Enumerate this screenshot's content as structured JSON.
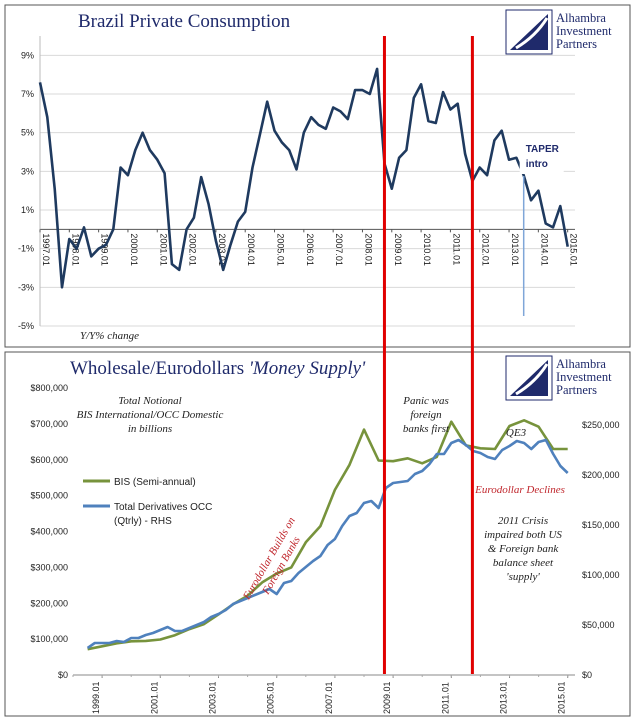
{
  "logo": {
    "lines": [
      "Alhambra",
      "Investment",
      "Partners"
    ],
    "color": "#1f2a6b"
  },
  "chart_data": [
    {
      "type": "line",
      "title": "Brazil Private Consumption",
      "note": "Y/Y% change",
      "annotation": [
        "TAPER",
        "intro"
      ],
      "ylim": [
        -5,
        10
      ],
      "yticks": [
        "9%",
        "7%",
        "5%",
        "3%",
        "1%",
        "-1%",
        "-3%",
        "-5%"
      ],
      "xlim": [
        1997.0,
        2015.25
      ],
      "xticks": [
        "1997.01",
        "1998.01",
        "1999.01",
        "2000.01",
        "2001.01",
        "2002.01",
        "2003.01",
        "2004.01",
        "2005.01",
        "2006.01",
        "2007.01",
        "2008.01",
        "2009.01",
        "2010.01",
        "2011.01",
        "2012.01",
        "2013.01",
        "2014.01",
        "2015.01"
      ],
      "series": [
        {
          "color": "#1f3a5f",
          "x": [
            1997.0,
            1997.25,
            1997.5,
            1997.75,
            1998.0,
            1998.25,
            1998.5,
            1998.75,
            1999.0,
            1999.25,
            1999.5,
            1999.75,
            2000.0,
            2000.25,
            2000.5,
            2000.75,
            2001.0,
            2001.25,
            2001.5,
            2001.75,
            2002.0,
            2002.25,
            2002.5,
            2002.75,
            2003.0,
            2003.25,
            2003.5,
            2003.75,
            2004.0,
            2004.25,
            2004.5,
            2004.75,
            2005.0,
            2005.25,
            2005.5,
            2005.75,
            2006.0,
            2006.25,
            2006.5,
            2006.75,
            2007.0,
            2007.25,
            2007.5,
            2007.75,
            2008.0,
            2008.25,
            2008.5,
            2008.75,
            2009.0,
            2009.25,
            2009.5,
            2009.75,
            2010.0,
            2010.25,
            2010.5,
            2010.75,
            2011.0,
            2011.25,
            2011.5,
            2011.75,
            2012.0,
            2012.25,
            2012.5,
            2012.75,
            2013.0,
            2013.25,
            2013.5,
            2013.75,
            2014.0,
            2014.25,
            2014.5,
            2014.75,
            2015.0
          ],
          "y": [
            7.6,
            5.8,
            2.1,
            -3.0,
            -0.5,
            -1.0,
            0.1,
            -1.4,
            -1.0,
            -0.8,
            0.0,
            3.2,
            2.8,
            4.1,
            5.0,
            4.1,
            3.6,
            2.9,
            -1.8,
            -2.1,
            0.0,
            0.6,
            2.7,
            1.3,
            -0.6,
            -2.1,
            -0.8,
            0.4,
            0.9,
            3.2,
            4.9,
            6.6,
            5.1,
            4.5,
            4.1,
            3.1,
            5.0,
            5.8,
            5.4,
            5.2,
            6.3,
            6.1,
            5.7,
            7.2,
            7.2,
            7.0,
            8.3,
            3.4,
            2.1,
            3.7,
            4.1,
            6.8,
            7.5,
            5.6,
            5.5,
            7.1,
            6.2,
            6.5,
            3.9,
            2.5,
            3.2,
            2.8,
            4.6,
            5.1,
            3.6,
            3.7,
            2.8,
            1.5,
            2.0,
            0.3,
            0.1,
            1.2,
            -0.9
          ]
        }
      ]
    },
    {
      "type": "line",
      "title_prefix": "Wholesale/Eurodollars ",
      "title_italic": "'Money Supply'",
      "xlim": [
        1998.0,
        2015.25
      ],
      "ylim": [
        0,
        800000
      ],
      "ylim_right": [
        0,
        287000
      ],
      "yticks_left": [
        "$800,000",
        "$700,000",
        "$600,000",
        "$500,000",
        "$400,000",
        "$300,000",
        "$200,000",
        "$100,000",
        "$0"
      ],
      "yticks_right": [
        "$250,000",
        "$200,000",
        "$150,000",
        "$100,000",
        "$50,000",
        "$0"
      ],
      "xticks": [
        "1999.01",
        "2001.01",
        "2003.01",
        "2005.01",
        "2007.01",
        "2009.01",
        "2011.01",
        "2013.01",
        "2015.01"
      ],
      "notes": {
        "total_notional": [
          "Total Notional",
          "BIS International/OCC Domestic",
          "in billions"
        ],
        "panic": [
          "Panic was",
          "foreign",
          "banks first"
        ],
        "qe3": "QE3",
        "eurodollar_declines": "Eurodollar Declines",
        "eurodollar_builds": [
          "Eurodollar Builds on",
          "Foreign Banks"
        ],
        "crisis_2011": [
          "2011 Crisis",
          "impaired both US",
          "& Foreign bank",
          "balance sheet",
          "'supply'"
        ]
      },
      "series": [
        {
          "name": "BIS (Semi-annual)",
          "axis": "left",
          "color": "#77933c",
          "x": [
            1998.5,
            1999.0,
            1999.5,
            2000.0,
            2000.5,
            2001.0,
            2001.5,
            2002.0,
            2002.5,
            2003.0,
            2003.5,
            2004.0,
            2004.5,
            2005.0,
            2005.5,
            2006.0,
            2006.5,
            2007.0,
            2007.5,
            2008.0,
            2008.5,
            2009.0,
            2009.5,
            2010.0,
            2010.5,
            2011.0,
            2011.5,
            2012.0,
            2012.5,
            2013.0,
            2013.5,
            2014.0,
            2014.5,
            2015.0
          ],
          "y": [
            72000,
            80000,
            88000,
            94000,
            95000,
            99000,
            111000,
            128000,
            142000,
            169000,
            197000,
            221000,
            258000,
            283000,
            300000,
            370000,
            415000,
            516000,
            586000,
            684000,
            598000,
            596000,
            604000,
            590000,
            608000,
            706000,
            640000,
            632000,
            630000,
            694000,
            710000,
            692000,
            630000,
            630000
          ]
        },
        {
          "name": "Total Derivatives OCC",
          "name_line2": "(Qtrly) - RHS",
          "axis": "right",
          "color": "#4f81bd",
          "x": [
            1998.5,
            1998.75,
            1999.0,
            1999.25,
            1999.5,
            1999.75,
            2000.0,
            2000.25,
            2000.5,
            2000.75,
            2001.0,
            2001.25,
            2001.5,
            2001.75,
            2002.0,
            2002.25,
            2002.5,
            2002.75,
            2003.0,
            2003.25,
            2003.5,
            2003.75,
            2004.0,
            2004.25,
            2004.5,
            2004.75,
            2005.0,
            2005.25,
            2005.5,
            2005.75,
            2006.0,
            2006.25,
            2006.5,
            2006.75,
            2007.0,
            2007.25,
            2007.5,
            2007.75,
            2008.0,
            2008.25,
            2008.5,
            2008.75,
            2009.0,
            2009.25,
            2009.5,
            2009.75,
            2010.0,
            2010.25,
            2010.5,
            2010.75,
            2011.0,
            2011.25,
            2011.5,
            2011.75,
            2012.0,
            2012.25,
            2012.5,
            2012.75,
            2013.0,
            2013.25,
            2013.5,
            2013.75,
            2014.0,
            2014.25,
            2014.5,
            2014.75,
            2015.0
          ],
          "y": [
            27000,
            32000,
            32000,
            32000,
            34000,
            33000,
            37000,
            37000,
            40000,
            42000,
            45000,
            48000,
            44000,
            44000,
            47000,
            50000,
            53000,
            58000,
            61000,
            65000,
            71000,
            74000,
            77000,
            80000,
            83000,
            86000,
            81000,
            92000,
            94000,
            102000,
            108000,
            114000,
            119000,
            130000,
            136000,
            149000,
            159000,
            162000,
            172000,
            174000,
            167000,
            187000,
            192000,
            193000,
            194000,
            201000,
            204000,
            211000,
            221000,
            221000,
            232000,
            235000,
            230000,
            224000,
            222000,
            218000,
            216000,
            225000,
            229000,
            234000,
            232000,
            226000,
            233000,
            235000,
            221000,
            209000,
            202000
          ]
        }
      ],
      "legend_placement": "middle-left"
    }
  ],
  "markers": {
    "red_lines_at": [
      2008.75,
      2011.75
    ],
    "taper_line_at": 2013.5,
    "red": "#e00000"
  }
}
